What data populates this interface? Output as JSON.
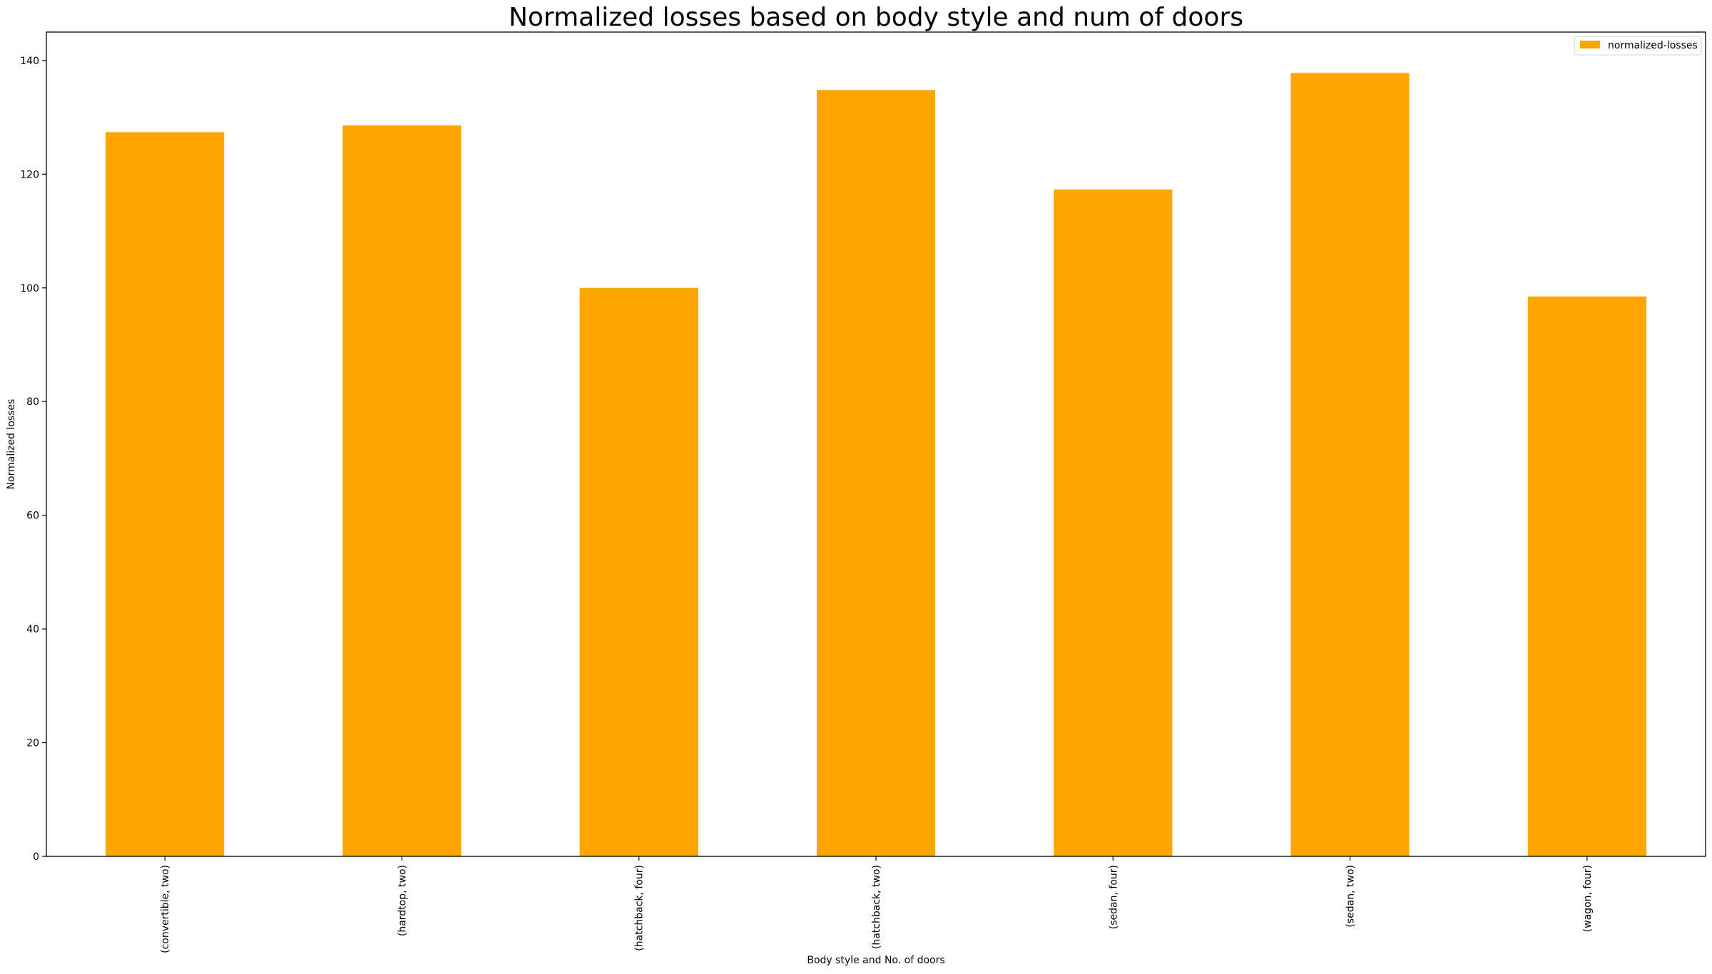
{
  "chart_data": {
    "type": "bar",
    "title": "Normalized losses based on body style and num of doors",
    "xlabel": "Body style and No. of doors",
    "ylabel": "Normalized losses",
    "categories": [
      "(convertible, two)",
      "(hardtop, two)",
      "(hatchback, four)",
      "(hatchback, two)",
      "(sedan, four)",
      "(sedan, two)",
      "(wagon, four)"
    ],
    "series": [
      {
        "name": "normalized-losses",
        "color": "#FFA500",
        "values": [
          127.4,
          128.6,
          100.0,
          134.8,
          117.3,
          137.8,
          98.5
        ]
      }
    ],
    "ylim": [
      0,
      145
    ],
    "yticks": [
      0,
      20,
      40,
      60,
      80,
      100,
      120,
      140
    ],
    "grid": false,
    "legend_position": "top-right"
  }
}
